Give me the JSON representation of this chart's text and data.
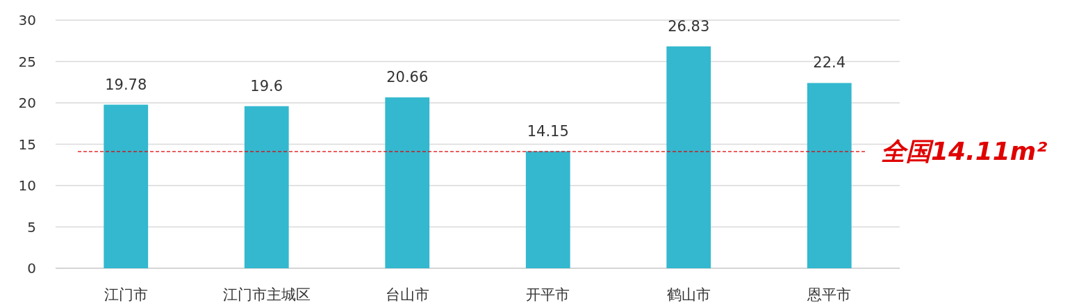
{
  "chart_data": {
    "type": "bar",
    "categories": [
      "江门市",
      "江门市主城区",
      "台山市",
      "开平市",
      "鹤山市",
      "恩平市"
    ],
    "values": [
      19.78,
      19.6,
      20.66,
      14.15,
      26.83,
      22.4
    ],
    "color": "#33b8cf",
    "ylim": [
      0,
      30
    ],
    "yticks": [
      0,
      5,
      10,
      15,
      20,
      25,
      30
    ],
    "grid": "y",
    "data_labels": true,
    "ref_lines": [
      {
        "axis": "y",
        "value": 14.11,
        "label": "全国14.11m²",
        "color": "#e00000",
        "line_style": "dashed"
      }
    ]
  }
}
